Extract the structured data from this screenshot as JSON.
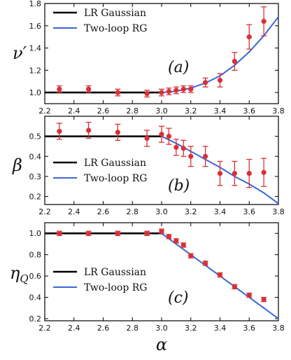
{
  "chart_data": [
    {
      "type": "line",
      "panel_label": "(a)",
      "ylabel": "ν′",
      "xlim": [
        2.2,
        3.8
      ],
      "ylim": [
        0.9,
        1.8
      ],
      "x_ticks": [
        2.2,
        2.4,
        2.6,
        2.8,
        3.0,
        3.2,
        3.4,
        3.6,
        3.8
      ],
      "x_tick_labels": [
        "2.2",
        "2.4",
        "2.6",
        "2.8",
        "3.0",
        "3.2",
        "3.4",
        "3.6",
        "3.8"
      ],
      "y_ticks": [
        1.0,
        1.2,
        1.4,
        1.6,
        1.8
      ],
      "y_tick_labels": [
        "1.0",
        "1.2",
        "1.4",
        "1.6",
        "1.8"
      ],
      "legend_position": "top-left",
      "series": [
        {
          "name": "LR Gaussian",
          "kind": "line",
          "color": "#000000",
          "x": [
            2.2,
            3.0
          ],
          "y": [
            1.0,
            1.0
          ]
        },
        {
          "name": "Two-loop RG",
          "kind": "line",
          "color": "#3a66d8",
          "x": [
            3.0,
            3.1,
            3.2,
            3.3,
            3.4,
            3.5,
            3.6,
            3.7,
            3.8
          ],
          "y": [
            1.0,
            1.012,
            1.04,
            1.085,
            1.15,
            1.245,
            1.365,
            1.51,
            1.68
          ]
        },
        {
          "name": "data",
          "kind": "errorbar",
          "color": "#d93035",
          "x": [
            2.3,
            2.5,
            2.7,
            2.9,
            3.0,
            3.05,
            3.1,
            3.15,
            3.2,
            3.3,
            3.4,
            3.5,
            3.6,
            3.7
          ],
          "y": [
            1.03,
            1.03,
            1.0,
            0.99,
            1.0,
            1.01,
            1.02,
            1.03,
            1.03,
            1.09,
            1.11,
            1.28,
            1.5,
            1.64
          ],
          "err": [
            0.03,
            0.03,
            0.03,
            0.03,
            0.03,
            0.03,
            0.03,
            0.03,
            0.03,
            0.04,
            0.06,
            0.08,
            0.11,
            0.13
          ]
        }
      ]
    },
    {
      "type": "line",
      "panel_label": "(b)",
      "ylabel": "β",
      "xlim": [
        2.2,
        3.8
      ],
      "ylim": [
        0.16,
        0.6
      ],
      "x_ticks": [
        2.2,
        2.4,
        2.6,
        2.8,
        3.0,
        3.2,
        3.4,
        3.6,
        3.8
      ],
      "x_tick_labels": [
        "2.2",
        "2.4",
        "2.6",
        "2.8",
        "3.0",
        "3.2",
        "3.4",
        "3.6",
        "3.8"
      ],
      "y_ticks": [
        0.2,
        0.3,
        0.4,
        0.5
      ],
      "y_tick_labels": [
        "0.2",
        "0.3",
        "0.4",
        "0.5"
      ],
      "legend_position": "center-left",
      "series": [
        {
          "name": "LR Gaussian",
          "kind": "line",
          "color": "#000000",
          "x": [
            2.2,
            3.0
          ],
          "y": [
            0.5,
            0.5
          ]
        },
        {
          "name": "Two-loop RG",
          "kind": "line",
          "color": "#3a66d8",
          "x": [
            3.0,
            3.1,
            3.2,
            3.3,
            3.4,
            3.5,
            3.6,
            3.7,
            3.8
          ],
          "y": [
            0.5,
            0.465,
            0.425,
            0.385,
            0.345,
            0.3,
            0.262,
            0.218,
            0.165
          ]
        },
        {
          "name": "data",
          "kind": "errorbar",
          "color": "#d93035",
          "x": [
            2.3,
            2.5,
            2.7,
            2.9,
            3.0,
            3.05,
            3.1,
            3.15,
            3.2,
            3.3,
            3.4,
            3.5,
            3.6,
            3.7
          ],
          "y": [
            0.525,
            0.53,
            0.52,
            0.49,
            0.51,
            0.5,
            0.445,
            0.44,
            0.4,
            0.4,
            0.315,
            0.315,
            0.315,
            0.32
          ],
          "err": [
            0.04,
            0.04,
            0.04,
            0.04,
            0.04,
            0.04,
            0.04,
            0.04,
            0.05,
            0.05,
            0.06,
            0.06,
            0.07,
            0.07
          ]
        }
      ]
    },
    {
      "type": "line",
      "panel_label": "(c)",
      "ylabel": "ηQ",
      "xlabel": "α",
      "xlim": [
        2.2,
        3.8
      ],
      "ylim": [
        0.18,
        1.1
      ],
      "x_ticks": [
        2.2,
        2.4,
        2.6,
        2.8,
        3.0,
        3.2,
        3.4,
        3.6,
        3.8
      ],
      "x_tick_labels": [
        "2.2",
        "2.4",
        "2.6",
        "2.8",
        "3.0",
        "3.2",
        "3.4",
        "3.6",
        "3.8"
      ],
      "y_ticks": [
        0.2,
        0.4,
        0.6,
        0.8,
        1.0
      ],
      "y_tick_labels": [
        "0.2",
        "0.4",
        "0.6",
        "0.8",
        "1.0"
      ],
      "legend_position": "center-left",
      "series": [
        {
          "name": "LR Gaussian",
          "kind": "line",
          "color": "#000000",
          "x": [
            2.2,
            3.0
          ],
          "y": [
            1.0,
            1.0
          ]
        },
        {
          "name": "Two-loop RG",
          "kind": "line",
          "color": "#3a66d8",
          "x": [
            3.0,
            3.2,
            3.4,
            3.6,
            3.8
          ],
          "y": [
            1.0,
            0.8,
            0.6,
            0.4,
            0.2
          ]
        },
        {
          "name": "data",
          "kind": "errorbar",
          "color": "#d93035",
          "x": [
            2.3,
            2.5,
            2.7,
            2.9,
            3.0,
            3.05,
            3.1,
            3.15,
            3.2,
            3.3,
            3.4,
            3.5,
            3.6,
            3.7
          ],
          "y": [
            1.0,
            1.0,
            1.0,
            1.0,
            1.02,
            0.97,
            0.93,
            0.89,
            0.79,
            0.72,
            0.61,
            0.5,
            0.42,
            0.38
          ],
          "err": [
            0.02,
            0.02,
            0.02,
            0.02,
            0.02,
            0.02,
            0.02,
            0.02,
            0.02,
            0.02,
            0.02,
            0.02,
            0.02,
            0.02
          ]
        }
      ]
    }
  ]
}
